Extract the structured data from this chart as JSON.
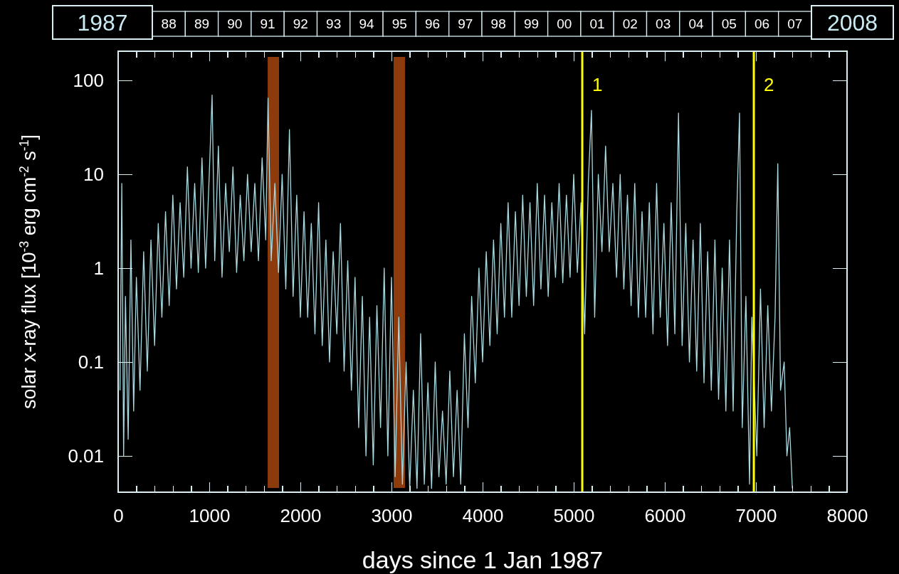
{
  "chart_data": {
    "type": "line",
    "xlabel": "days since 1 Jan 1987",
    "ylabel": "solar x-ray flux  [10$^{-3}$ erg cm$^{-2}$ s$^{-1}$]",
    "annotations": [
      "1987",
      "88",
      "89",
      "90",
      "91",
      "92",
      "93",
      "94",
      "95",
      "96",
      "97",
      "98",
      "99",
      "00",
      "01",
      "02",
      "03",
      "04",
      "05",
      "06",
      "07",
      "2008",
      {
        "text": "1",
        "x": 5094,
        "y": 90
      },
      {
        "text": "2",
        "x": 6977,
        "y": 90
      }
    ],
    "log": "y",
    "grid": false,
    "marker": "none",
    "line_style": "solid",
    "xlim": [
      0,
      8000
    ],
    "ylim": [
      0.0041,
      205
    ],
    "xticks": [
      0,
      {
        "value": 200,
        "label": null
      },
      {
        "value": 400,
        "label": null
      },
      {
        "value": 600,
        "label": null
      },
      {
        "value": 800,
        "label": null
      },
      1000,
      {
        "value": 1200,
        "label": null
      },
      {
        "value": 1400,
        "label": null
      },
      {
        "value": 1600,
        "label": null
      },
      {
        "value": 1800,
        "label": null
      },
      2000,
      {
        "value": 2200,
        "label": null
      },
      {
        "value": 2400,
        "label": null
      },
      {
        "value": 2600,
        "label": null
      },
      {
        "value": 2800,
        "label": null
      },
      3000,
      {
        "value": 3200,
        "label": null
      },
      {
        "value": 3400,
        "label": null
      },
      {
        "value": 3600,
        "label": null
      },
      {
        "value": 3800,
        "label": null
      },
      4000,
      {
        "value": 4200,
        "label": null
      },
      {
        "value": 4400,
        "label": null
      },
      {
        "value": 4600,
        "label": null
      },
      {
        "value": 4800,
        "label": null
      },
      5000,
      {
        "value": 5200,
        "label": null
      },
      {
        "value": 5400,
        "label": null
      },
      {
        "value": 5600,
        "label": null
      },
      {
        "value": 5800,
        "label": null
      },
      6000,
      {
        "value": 6200,
        "label": null
      },
      {
        "value": 6400,
        "label": null
      },
      {
        "value": 6600,
        "label": null
      },
      {
        "value": 6800,
        "label": null
      },
      7000,
      {
        "value": 7200,
        "label": null
      },
      {
        "value": 7400,
        "label": null
      },
      {
        "value": 7600,
        "label": null
      },
      {
        "value": 7800,
        "label": null
      },
      8000
    ],
    "yticks": [
      0.01,
      0.1,
      1,
      10,
      100
    ],
    "ref_lines": [
      {
        "axis": "x",
        "value": 5094,
        "color": "#ffff00"
      },
      {
        "axis": "x",
        "value": 6977,
        "color": "#ffff00"
      }
    ],
    "bands": [
      {
        "axis": "x",
        "from": 1641,
        "to": 1766,
        "color": "#b04a10"
      },
      {
        "axis": "x",
        "from": 3023,
        "to": 3148,
        "color": "#b04a10"
      }
    ],
    "series": [
      {
        "color": "#a8d8e0",
        "x": [
          20,
          40,
          60,
          80,
          110,
          140,
          170,
          200,
          240,
          280,
          320,
          360,
          400,
          440,
          480,
          520,
          560,
          600,
          640,
          680,
          720,
          760,
          800,
          840,
          880,
          920,
          960,
          1000,
          1031,
          1060,
          1100,
          1140,
          1180,
          1220,
          1260,
          1300,
          1340,
          1380,
          1420,
          1460,
          1500,
          1540,
          1580,
          1620,
          1645,
          1680,
          1720,
          1760,
          1800,
          1840,
          1880,
          1920,
          1960,
          2000,
          2040,
          2080,
          2120,
          2160,
          2200,
          2240,
          2280,
          2320,
          2360,
          2400,
          2440,
          2480,
          2520,
          2560,
          2600,
          2640,
          2680,
          2720,
          2760,
          2800,
          2840,
          2880,
          2920,
          2960,
          3000,
          3040,
          3080,
          3120,
          3160,
          3200,
          3240,
          3280,
          3320,
          3360,
          3400,
          3440,
          3480,
          3520,
          3560,
          3600,
          3640,
          3680,
          3720,
          3760,
          3800,
          3840,
          3880,
          3920,
          3960,
          4000,
          4040,
          4080,
          4120,
          4160,
          4200,
          4240,
          4280,
          4320,
          4360,
          4400,
          4440,
          4480,
          4520,
          4560,
          4600,
          4640,
          4680,
          4720,
          4760,
          4800,
          4840,
          4880,
          4920,
          4960,
          5000,
          5040,
          5080,
          5120,
          5160,
          5195,
          5230,
          5270,
          5310,
          5350,
          5390,
          5430,
          5470,
          5510,
          5550,
          5590,
          5630,
          5670,
          5710,
          5750,
          5790,
          5830,
          5870,
          5910,
          5950,
          5990,
          6030,
          6070,
          6110,
          6150,
          6190,
          6230,
          6270,
          6310,
          6350,
          6390,
          6430,
          6470,
          6510,
          6550,
          6590,
          6630,
          6670,
          6710,
          6750,
          6790,
          6820,
          6850,
          6890,
          6930,
          6955,
          7010,
          7050,
          7090,
          7130,
          7170,
          7210,
          7240,
          7270,
          7310,
          7340,
          7370,
          7400
        ],
        "values": [
          0.05,
          8,
          0.01,
          0.5,
          0.015,
          2,
          0.03,
          0.8,
          0.05,
          1.5,
          0.08,
          2,
          0.15,
          3,
          0.3,
          4,
          0.4,
          6,
          0.6,
          5,
          0.8,
          12,
          1,
          8,
          0.9,
          15,
          1,
          10,
          70,
          1.2,
          20,
          0.8,
          8,
          1.5,
          12,
          0.9,
          6,
          1.2,
          10,
          1.5,
          8,
          1.2,
          15,
          2,
          65,
          1.2,
          8,
          0.9,
          10,
          0.6,
          30,
          0.5,
          6,
          0.3,
          4,
          0.3,
          3,
          0.2,
          5,
          0.15,
          2,
          0.1,
          1.5,
          0.2,
          3,
          0.08,
          1.2,
          0.05,
          0.8,
          0.02,
          0.5,
          0.01,
          0.3,
          0.008,
          0.4,
          0.02,
          1,
          0.01,
          0.8,
          0.006,
          0.3,
          0.005,
          0.1,
          0.0045,
          0.05,
          0.0045,
          0.2,
          0.005,
          0.06,
          0.0045,
          0.1,
          0.006,
          0.03,
          0.005,
          0.08,
          0.006,
          0.05,
          0.005,
          0.2,
          0.02,
          0.5,
          0.06,
          1,
          0.1,
          1.5,
          0.15,
          2,
          0.2,
          3,
          0.3,
          5,
          0.3,
          4,
          0.4,
          6,
          0.5,
          5,
          0.4,
          8,
          0.6,
          6,
          0.5,
          5,
          0.8,
          8,
          0.7,
          6,
          0.8,
          10,
          0.9,
          5,
          0.2,
          8,
          48,
          0.3,
          10,
          1.5,
          20,
          1.5,
          8,
          0.8,
          10,
          0.6,
          6,
          0.4,
          8,
          0.3,
          4,
          0.3,
          5,
          0.2,
          8,
          0.3,
          3,
          0.15,
          5,
          0.2,
          45,
          0.15,
          3,
          0.1,
          2,
          0.08,
          3,
          0.06,
          1.5,
          0.05,
          2,
          0.04,
          1,
          0.03,
          2,
          0.03,
          4,
          45,
          0.02,
          0.5,
          0.005,
          0.3,
          0.01,
          0.6,
          0.02,
          0.4,
          0.03,
          0.3,
          13,
          0.05,
          0.1,
          0.01,
          0.02,
          0.0045
        ]
      }
    ]
  }
}
